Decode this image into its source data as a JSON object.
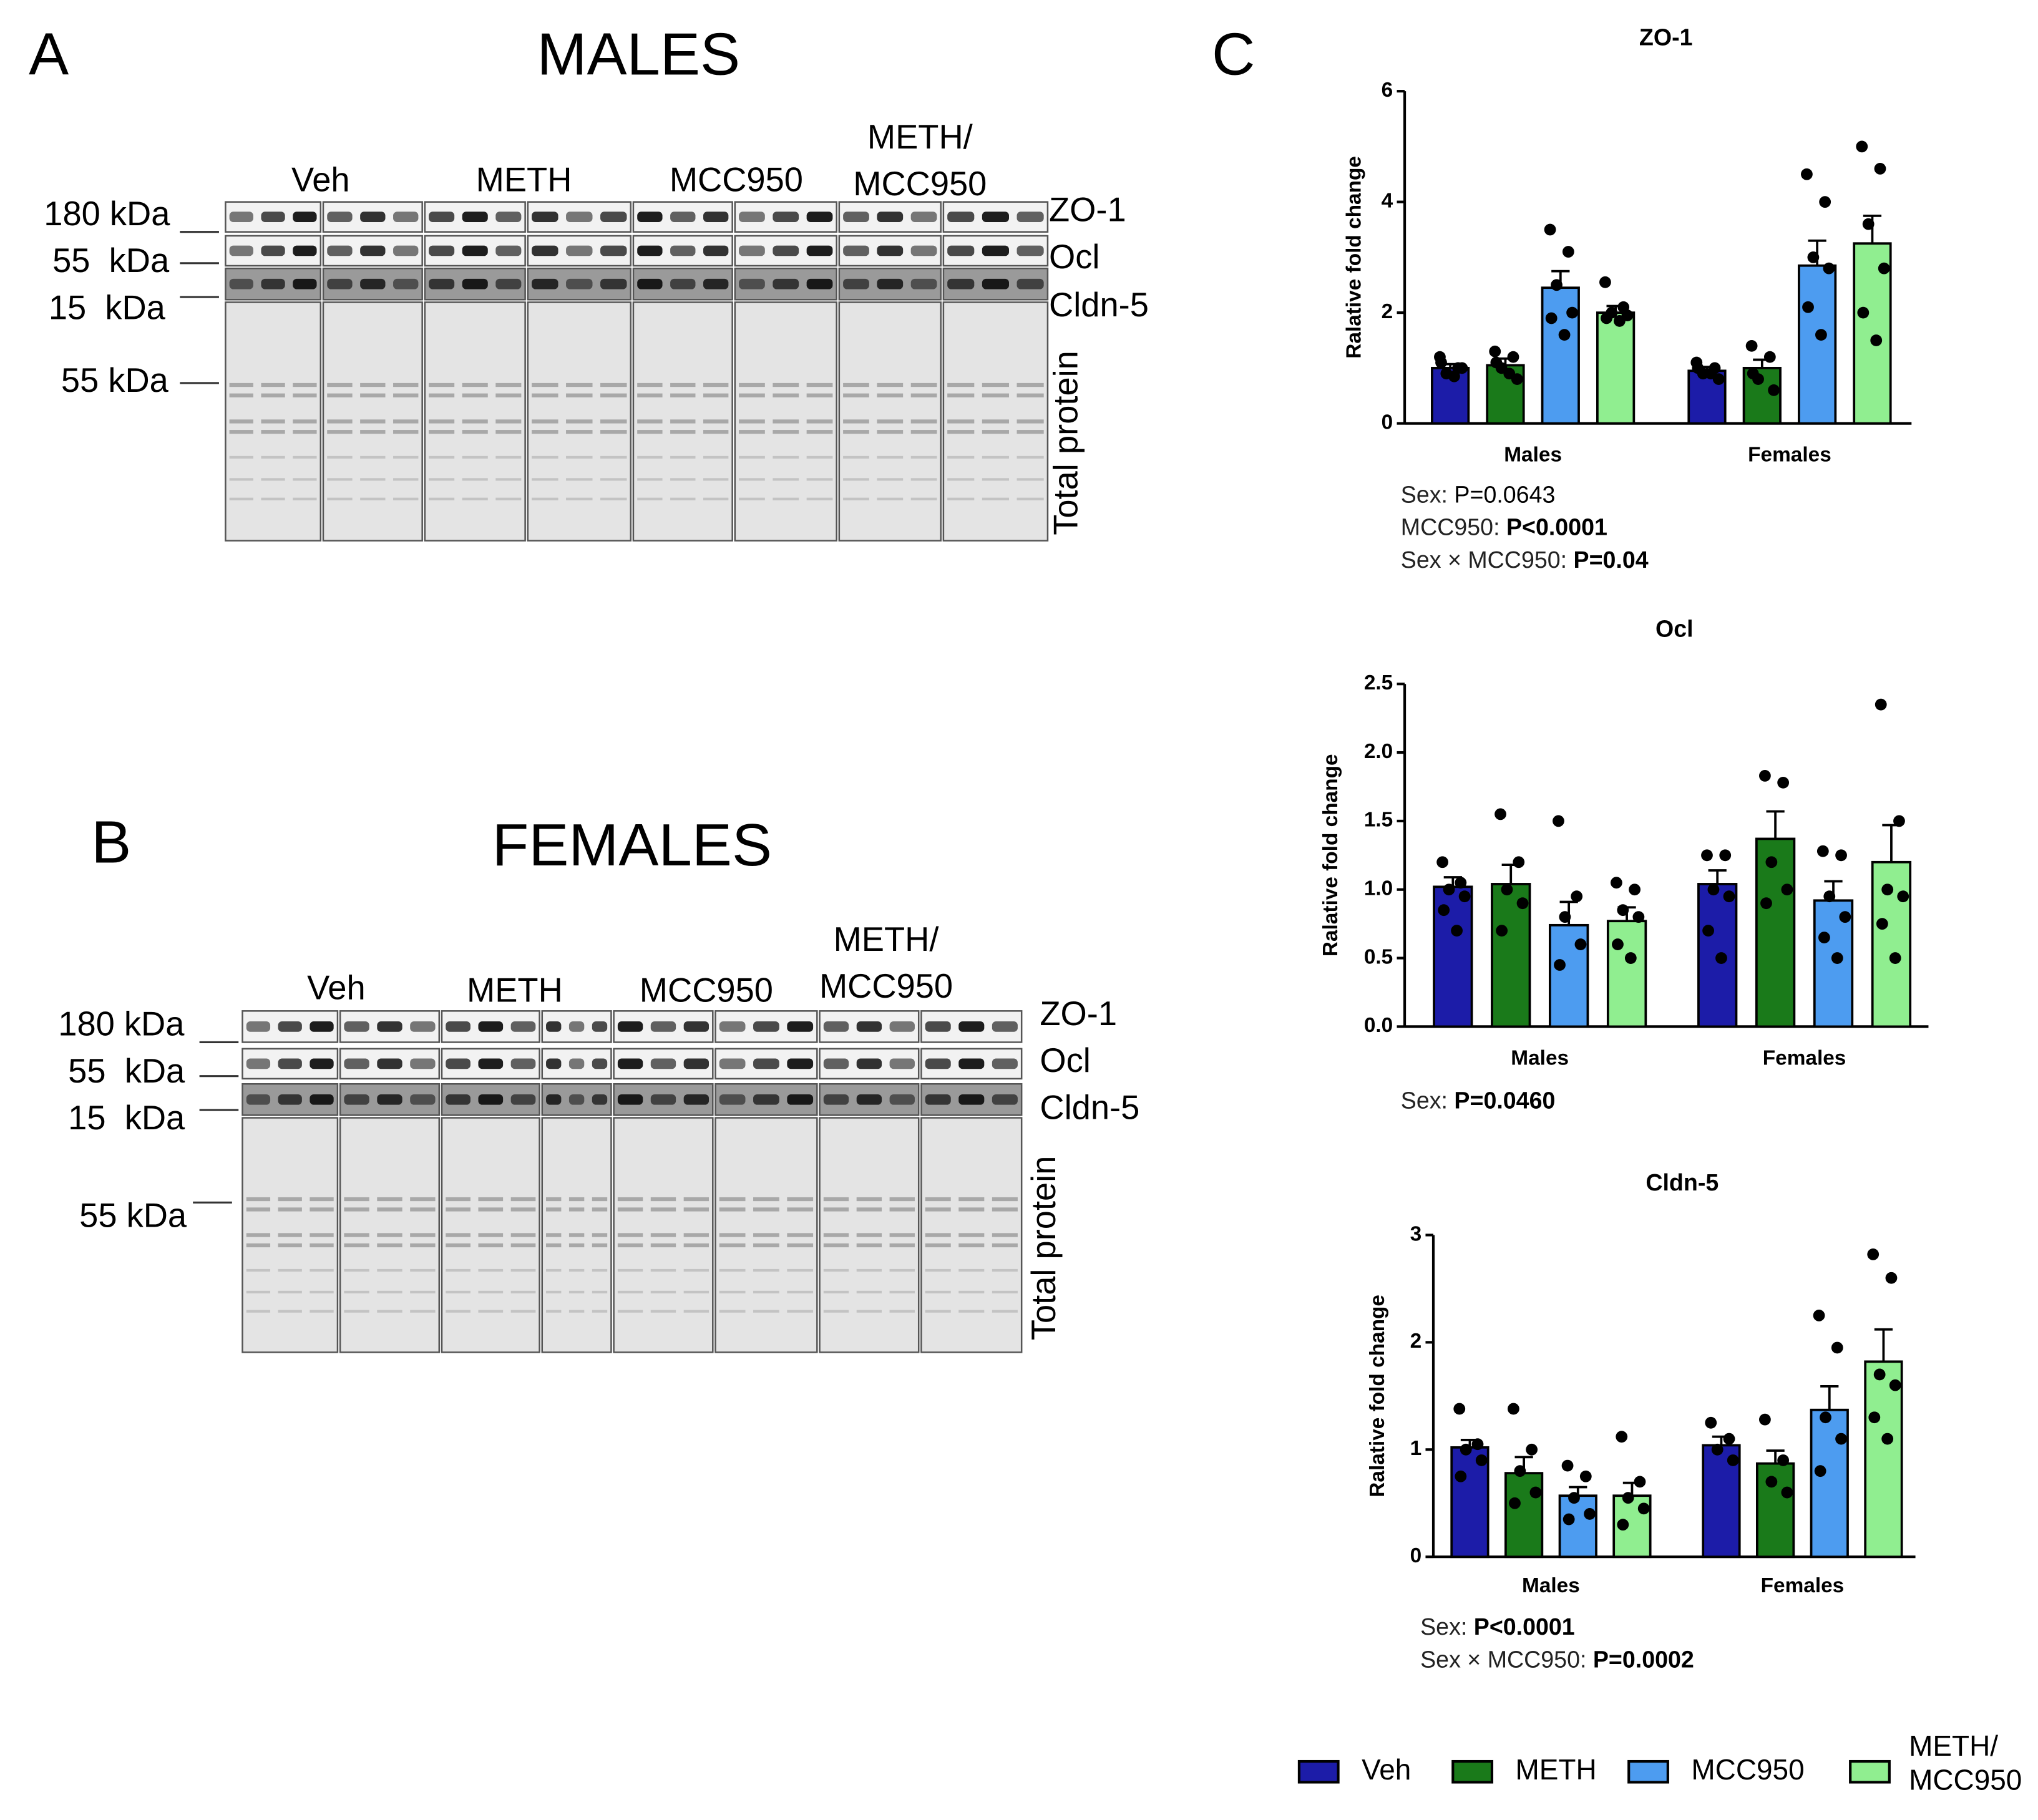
{
  "panel_a": {
    "letter": "A",
    "title": "MALES",
    "groups": [
      [
        "Veh"
      ],
      [
        "METH"
      ],
      [
        "MCC950"
      ],
      [
        "METH/",
        "MCC950"
      ]
    ],
    "markers": [
      "180 kDa",
      "55  kDa",
      "15  kDa",
      "55 kDa"
    ],
    "proteins": [
      "ZO-1",
      "Ocl",
      "Cldn-5"
    ],
    "total_label": "Total protein"
  },
  "panel_b": {
    "letter": "B",
    "title": "FEMALES",
    "groups": [
      [
        "Veh"
      ],
      [
        "METH"
      ],
      [
        "MCC950"
      ],
      [
        "METH/",
        "MCC950"
      ]
    ],
    "markers": [
      "180 kDa",
      "55  kDa",
      "15  kDa",
      "55 kDa"
    ],
    "proteins": [
      "ZO-1",
      "Ocl",
      "Cldn-5"
    ],
    "total_label": "Total protein"
  },
  "panel_c": {
    "letter": "C"
  },
  "chart_data": [
    {
      "type": "bar",
      "title": "ZO-1",
      "y_label": "Ralative fold change",
      "categories": [
        "Males",
        "Females"
      ],
      "ylim": [
        0,
        6
      ],
      "yticks": [
        0,
        2,
        4,
        6
      ],
      "legend": "bottom-right",
      "series": [
        {
          "name": "Veh",
          "color": "#1c1ca8",
          "values": [
            1.0,
            0.95
          ],
          "errors": [
            0.07,
            0.07
          ],
          "points": [
            [
              1.2,
              1.0,
              0.9,
              1.0,
              1.1,
              0.85
            ],
            [
              1.1,
              1.0,
              0.9,
              0.8,
              1.0,
              0.9
            ]
          ]
        },
        {
          "name": "METH",
          "color": "#1a7a1a",
          "values": [
            1.05,
            1.0
          ],
          "errors": [
            0.12,
            0.15
          ],
          "points": [
            [
              1.3,
              1.2,
              1.0,
              0.8,
              1.1,
              0.9
            ],
            [
              1.4,
              1.2,
              0.8,
              0.6,
              0.9
            ]
          ]
        },
        {
          "name": "MCC950",
          "color": "#4d9cf0",
          "values": [
            2.45,
            2.85
          ],
          "errors": [
            0.3,
            0.45
          ],
          "points": [
            [
              3.5,
              3.1,
              2.5,
              2.0,
              1.9,
              1.6
            ],
            [
              4.5,
              4.0,
              3.0,
              2.8,
              2.1,
              1.6
            ]
          ]
        },
        {
          "name": "METH/MCC950",
          "color": "#90ee90",
          "values": [
            2.0,
            3.25
          ],
          "errors": [
            0.12,
            0.5
          ],
          "points": [
            [
              2.55,
              2.1,
              2.0,
              1.95,
              1.9,
              1.85
            ],
            [
              5.0,
              4.6,
              3.6,
              2.8,
              2.0,
              1.5
            ]
          ]
        }
      ],
      "annotations": [
        {
          "label": "Sex:",
          "value": "P=0.0643",
          "bold": false
        },
        {
          "label": "MCC950:",
          "value": "P<0.0001",
          "bold": true
        },
        {
          "label": "Sex × MCC950:",
          "value": "P=0.04",
          "bold": true
        }
      ]
    },
    {
      "type": "bar",
      "title": "Ocl",
      "y_label": "Ralative fold change",
      "categories": [
        "Males",
        "Females"
      ],
      "ylim": [
        0,
        2.5
      ],
      "yticks": [
        {
          "value": 0,
          "label": "0.0"
        },
        0.5,
        {
          "value": 1,
          "label": "1.0"
        },
        1.5,
        {
          "value": 2,
          "label": "2.0"
        },
        2.5
      ],
      "series": [
        {
          "name": "Veh",
          "color": "#1c1ca8",
          "values": [
            1.02,
            1.04
          ],
          "errors": [
            0.07,
            0.1
          ],
          "points": [
            [
              1.2,
              1.05,
              1.0,
              0.95,
              0.85,
              0.7
            ],
            [
              1.25,
              1.25,
              1.0,
              0.95,
              0.7,
              0.5
            ]
          ]
        },
        {
          "name": "METH",
          "color": "#1a7a1a",
          "values": [
            1.04,
            1.37
          ],
          "errors": [
            0.14,
            0.2
          ],
          "points": [
            [
              1.55,
              1.2,
              1.0,
              0.9,
              0.7
            ],
            [
              1.83,
              1.78,
              1.2,
              1.0,
              0.9
            ]
          ]
        },
        {
          "name": "MCC950",
          "color": "#4d9cf0",
          "values": [
            0.74,
            0.92
          ],
          "errors": [
            0.17,
            0.14
          ],
          "points": [
            [
              1.5,
              0.95,
              0.8,
              0.6,
              0.45
            ],
            [
              1.28,
              1.25,
              0.95,
              0.8,
              0.65,
              0.5
            ]
          ]
        },
        {
          "name": "METH/MCC950",
          "color": "#90ee90",
          "values": [
            0.77,
            1.2
          ],
          "errors": [
            0.1,
            0.27
          ],
          "points": [
            [
              1.05,
              1.0,
              0.85,
              0.8,
              0.6,
              0.5
            ],
            [
              2.35,
              1.5,
              1.0,
              0.95,
              0.75,
              0.5
            ]
          ]
        }
      ],
      "annotations": [
        {
          "label": "Sex:",
          "value": "P=0.0460",
          "bold": true
        }
      ]
    },
    {
      "type": "bar",
      "title": "Cldn-5",
      "y_label": "Ralative fold change",
      "categories": [
        "Males",
        "Females"
      ],
      "ylim": [
        0,
        3
      ],
      "yticks": [
        0,
        1,
        2,
        3
      ],
      "series": [
        {
          "name": "Veh",
          "color": "#1c1ca8",
          "values": [
            1.02,
            1.04
          ],
          "errors": [
            0.07,
            0.08
          ],
          "points": [
            [
              1.38,
              1.05,
              1.0,
              0.9,
              0.75
            ],
            [
              1.25,
              1.1,
              1.0,
              0.9
            ]
          ]
        },
        {
          "name": "METH",
          "color": "#1a7a1a",
          "values": [
            0.78,
            0.87
          ],
          "errors": [
            0.15,
            0.12
          ],
          "points": [
            [
              1.38,
              1.0,
              0.8,
              0.6,
              0.5
            ],
            [
              1.28,
              0.9,
              0.7,
              0.6
            ]
          ]
        },
        {
          "name": "MCC950",
          "color": "#4d9cf0",
          "values": [
            0.57,
            1.37
          ],
          "errors": [
            0.08,
            0.22
          ],
          "points": [
            [
              0.85,
              0.75,
              0.55,
              0.4,
              0.35
            ],
            [
              2.25,
              1.95,
              1.3,
              1.1,
              0.8
            ]
          ]
        },
        {
          "name": "METH/MCC950",
          "color": "#90ee90",
          "values": [
            0.57,
            1.82
          ],
          "errors": [
            0.12,
            0.3
          ],
          "points": [
            [
              1.12,
              0.7,
              0.55,
              0.45,
              0.3
            ],
            [
              2.82,
              2.6,
              1.7,
              1.6,
              1.3,
              1.1
            ]
          ]
        }
      ],
      "annotations": [
        {
          "label": "Sex:",
          "value": "P<0.0001",
          "bold": true
        },
        {
          "label": "Sex × MCC950:",
          "value": "P=0.0002",
          "bold": true
        }
      ]
    }
  ]
}
